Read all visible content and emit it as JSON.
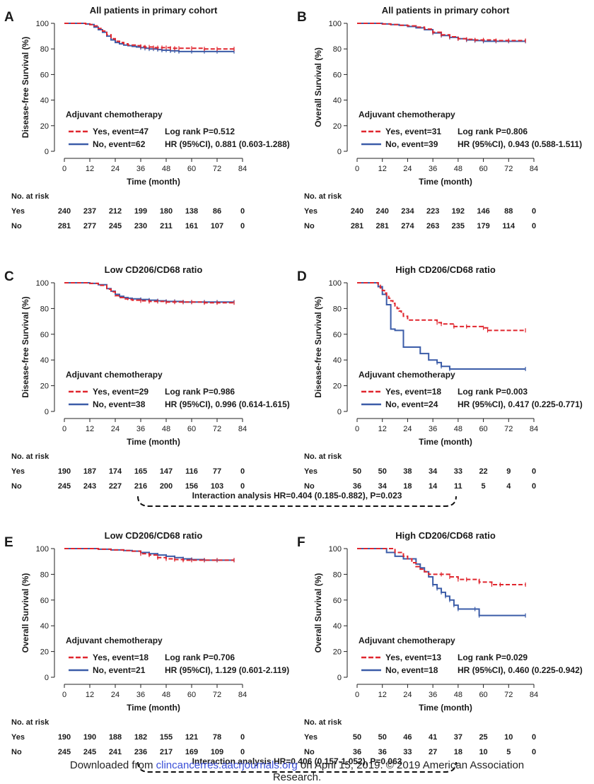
{
  "panels": [
    {
      "letter": "A",
      "title": "All patients in primary cohort",
      "ylabel": "Disease-free Survival (%)",
      "legend_header": "Adjuvant chemotherapy",
      "yes_label": "Yes, event=47",
      "no_label": "No, event=62",
      "stat1": "Log rank P=0.512",
      "stat2": "HR (95%CI), 0.881 (0.603-1.288)",
      "risk_header": "No. at risk",
      "risk_yes_label": "Yes",
      "risk_no_label": "No",
      "risk_yes": [
        "240",
        "237",
        "212",
        "199",
        "180",
        "138",
        "86",
        "0"
      ],
      "risk_no": [
        "281",
        "277",
        "245",
        "230",
        "211",
        "161",
        "107",
        "0"
      ]
    },
    {
      "letter": "B",
      "title": "All patients in primary cohort",
      "ylabel": "Overall Survival (%)",
      "legend_header": "Adjuvant chemotherapy",
      "yes_label": "Yes, event=31",
      "no_label": "No, event=39",
      "stat1": "Log rank P=0.806",
      "stat2": "HR (95%CI), 0.943 (0.588-1.511)",
      "risk_header": "No. at risk",
      "risk_yes_label": "Yes",
      "risk_no_label": "No",
      "risk_yes": [
        "240",
        "240",
        "234",
        "223",
        "192",
        "146",
        "88",
        "0"
      ],
      "risk_no": [
        "281",
        "281",
        "274",
        "263",
        "235",
        "179",
        "114",
        "0"
      ]
    },
    {
      "letter": "C",
      "title": "Low CD206/CD68 ratio",
      "ylabel": "Disease-free Survival (%)",
      "legend_header": "Adjuvant chemotherapy",
      "yes_label": "Yes, event=29",
      "no_label": "No, event=38",
      "stat1": "Log rank P=0.986",
      "stat2": "HR (95%CI), 0.996 (0.614-1.615)",
      "risk_header": "No. at risk",
      "risk_yes_label": "Yes",
      "risk_no_label": "No",
      "risk_yes": [
        "190",
        "187",
        "174",
        "165",
        "147",
        "116",
        "77",
        "0"
      ],
      "risk_no": [
        "245",
        "243",
        "227",
        "216",
        "200",
        "156",
        "103",
        "0"
      ]
    },
    {
      "letter": "D",
      "title": "High CD206/CD68 ratio",
      "ylabel": "Disease-free Survival (%)",
      "legend_header": "Adjuvant chemotherapy",
      "yes_label": "Yes, event=18",
      "no_label": "No, event=24",
      "stat1": "Log rank P=0.003",
      "stat2": "HR (95%CI), 0.417 (0.225-0.771)",
      "risk_header": "No. at risk",
      "risk_yes_label": "Yes",
      "risk_no_label": "No",
      "risk_yes": [
        "50",
        "50",
        "38",
        "34",
        "33",
        "22",
        "9",
        "0"
      ],
      "risk_no": [
        "36",
        "34",
        "18",
        "14",
        "11",
        "5",
        "4",
        "0"
      ]
    },
    {
      "letter": "E",
      "title": "Low CD206/CD68 ratio",
      "ylabel": "Overall Survival (%)",
      "legend_header": "Adjuvant chemotherapy",
      "yes_label": "Yes, event=18",
      "no_label": "No, event=21",
      "stat1": "Log rank P=0.706",
      "stat2": "HR (95%CI), 1.129 (0.601-2.119)",
      "risk_header": "No. at risk",
      "risk_yes_label": "Yes",
      "risk_no_label": "No",
      "risk_yes": [
        "190",
        "190",
        "188",
        "182",
        "155",
        "121",
        "78",
        "0"
      ],
      "risk_no": [
        "245",
        "245",
        "241",
        "236",
        "217",
        "169",
        "109",
        "0"
      ]
    },
    {
      "letter": "F",
      "title": "High CD206/CD68 ratio",
      "ylabel": "Overall Survival (%)",
      "legend_header": "Adjuvant chemotherapy",
      "yes_label": "Yes, event=13",
      "no_label": "No, event=18",
      "stat1": "Log rank P=0.029",
      "stat2": "HR (95%CI), 0.460 (0.225-0.942)",
      "risk_header": "No. at risk",
      "risk_yes_label": "Yes",
      "risk_no_label": "No",
      "risk_yes": [
        "50",
        "50",
        "46",
        "41",
        "37",
        "25",
        "10",
        "0"
      ],
      "risk_no": [
        "36",
        "36",
        "33",
        "27",
        "18",
        "10",
        "5",
        "0"
      ]
    }
  ],
  "xlabel": "Time (month)",
  "interaction_1": "Interaction analysis HR=0.404 (0.185-0.882), P=0.023",
  "interaction_2": "Interaction analysis HR=0.406 (0.157-1.052), P=0.063",
  "footer": {
    "prefix": "Downloaded from ",
    "link": "clincancerres.aacrjournals.org",
    "suffix": " on April 15, 2019. © 2019 American Association",
    "line2": "Research."
  },
  "colors": {
    "yes": "#e0262e",
    "no": "#3b5ca8"
  },
  "chart_data": [
    {
      "panel": "A",
      "type": "line",
      "title": "All patients in primary cohort",
      "xlabel": "Time (month)",
      "ylabel": "Disease-free Survival (%)",
      "xlim": [
        0,
        84
      ],
      "ylim": [
        0,
        100
      ],
      "xticks": [
        0,
        12,
        24,
        36,
        48,
        60,
        72,
        84
      ],
      "yticks": [
        0,
        20,
        40,
        60,
        80,
        100
      ],
      "series": [
        {
          "name": "Yes, event=47",
          "x": [
            0,
            8,
            10,
            12,
            14,
            16,
            18,
            20,
            22,
            24,
            26,
            28,
            30,
            32,
            34,
            36,
            38,
            40,
            42,
            44,
            46,
            48,
            50,
            52,
            54,
            60,
            66,
            72,
            80
          ],
          "y": [
            100,
            100,
            99.5,
            99,
            98,
            96,
            94,
            91,
            88,
            86,
            85,
            84,
            83,
            83,
            82.5,
            82,
            81.5,
            81.5,
            81,
            81,
            81,
            81,
            80.5,
            80.5,
            80.5,
            80.5,
            80,
            80,
            80
          ]
        },
        {
          "name": "No, event=62",
          "x": [
            0,
            8,
            10,
            12,
            14,
            16,
            18,
            20,
            22,
            24,
            26,
            28,
            30,
            32,
            34,
            36,
            38,
            40,
            42,
            44,
            46,
            48,
            50,
            52,
            54,
            60,
            66,
            72,
            80
          ],
          "y": [
            100,
            100,
            99.5,
            99,
            97,
            95,
            93,
            90,
            87,
            85,
            84,
            83,
            82.5,
            82,
            81.5,
            81,
            80.5,
            80,
            80,
            79.5,
            79,
            79,
            78.5,
            78.5,
            78,
            78,
            78,
            78,
            78
          ]
        }
      ]
    },
    {
      "panel": "B",
      "type": "line",
      "title": "All patients in primary cohort",
      "xlabel": "Time (month)",
      "ylabel": "Overall Survival (%)",
      "xlim": [
        0,
        84
      ],
      "ylim": [
        0,
        100
      ],
      "xticks": [
        0,
        12,
        24,
        36,
        48,
        60,
        72,
        84
      ],
      "yticks": [
        0,
        20,
        40,
        60,
        80,
        100
      ],
      "series": [
        {
          "name": "Yes, event=31",
          "x": [
            0,
            8,
            12,
            16,
            20,
            24,
            28,
            32,
            36,
            40,
            44,
            48,
            52,
            56,
            60,
            66,
            72,
            80
          ],
          "y": [
            100,
            100,
            99.5,
            99,
            98.5,
            98,
            97,
            95.5,
            93,
            91,
            89.5,
            88,
            87.5,
            87,
            87,
            86.5,
            86.5,
            86.5
          ]
        },
        {
          "name": "No, event=39",
          "x": [
            0,
            8,
            12,
            16,
            20,
            24,
            28,
            32,
            36,
            40,
            44,
            48,
            52,
            56,
            60,
            66,
            72,
            80
          ],
          "y": [
            100,
            100,
            99.5,
            99,
            98.5,
            97.5,
            96.5,
            95,
            92.5,
            90.5,
            89,
            88,
            87,
            86.5,
            86,
            86,
            86,
            86
          ]
        }
      ]
    },
    {
      "panel": "C",
      "type": "line",
      "title": "Low CD206/CD68 ratio",
      "xlabel": "Time (month)",
      "ylabel": "Disease-free Survival (%)",
      "xlim": [
        0,
        84
      ],
      "ylim": [
        0,
        100
      ],
      "xticks": [
        0,
        12,
        24,
        36,
        48,
        60,
        72,
        84
      ],
      "yticks": [
        0,
        20,
        40,
        60,
        80,
        100
      ],
      "series": [
        {
          "name": "Yes, event=29",
          "x": [
            0,
            8,
            12,
            16,
            20,
            22,
            24,
            26,
            28,
            30,
            32,
            36,
            40,
            44,
            48,
            52,
            56,
            60,
            66,
            72,
            80
          ],
          "y": [
            100,
            100,
            99.5,
            98,
            95,
            93,
            90,
            88.5,
            87.5,
            87,
            86.5,
            86,
            85.5,
            85.5,
            85,
            85,
            85,
            85,
            84.5,
            84.5,
            84.5
          ]
        },
        {
          "name": "No, event=38",
          "x": [
            0,
            8,
            12,
            16,
            20,
            22,
            24,
            26,
            28,
            30,
            32,
            36,
            40,
            44,
            48,
            52,
            56,
            60,
            66,
            72,
            80
          ],
          "y": [
            100,
            100,
            99.5,
            98.5,
            95.5,
            93.5,
            91,
            89.5,
            88.5,
            88,
            87.5,
            87,
            86.5,
            86,
            85.5,
            85.5,
            85,
            85,
            85,
            85,
            85
          ]
        }
      ]
    },
    {
      "panel": "D",
      "type": "line",
      "title": "High CD206/CD68 ratio",
      "xlabel": "Time (month)",
      "ylabel": "Disease-free Survival (%)",
      "xlim": [
        0,
        84
      ],
      "ylim": [
        0,
        100
      ],
      "xticks": [
        0,
        12,
        24,
        36,
        48,
        60,
        72,
        84
      ],
      "yticks": [
        0,
        20,
        40,
        60,
        80,
        100
      ],
      "series": [
        {
          "name": "Yes, event=18",
          "x": [
            0,
            9,
            10,
            11,
            12,
            13,
            14,
            15,
            16,
            17,
            18,
            19,
            20,
            21,
            22,
            24,
            34,
            38,
            40,
            46,
            52,
            60,
            62,
            80
          ],
          "y": [
            100,
            100,
            98,
            96,
            94,
            92,
            90,
            88,
            86,
            84,
            82,
            80,
            78,
            76,
            74,
            71,
            71,
            69,
            68,
            66,
            66,
            65,
            63,
            63
          ]
        },
        {
          "name": "No, event=24",
          "x": [
            0,
            8,
            10,
            12,
            14,
            16,
            18,
            22,
            28,
            30,
            34,
            38,
            40,
            44,
            80
          ],
          "y": [
            100,
            100,
            97,
            91,
            83,
            64,
            63,
            50,
            50,
            45,
            40,
            38,
            35,
            33,
            33
          ]
        }
      ]
    },
    {
      "panel": "E",
      "type": "line",
      "title": "Low CD206/CD68 ratio",
      "xlabel": "Time (month)",
      "ylabel": "Overall Survival (%)",
      "xlim": [
        0,
        84
      ],
      "ylim": [
        0,
        100
      ],
      "xticks": [
        0,
        12,
        24,
        36,
        48,
        60,
        72,
        84
      ],
      "yticks": [
        0,
        20,
        40,
        60,
        80,
        100
      ],
      "series": [
        {
          "name": "Yes, event=18",
          "x": [
            0,
            10,
            16,
            22,
            28,
            32,
            36,
            40,
            44,
            48,
            52,
            56,
            60,
            66,
            72,
            80
          ],
          "y": [
            100,
            100,
            99.5,
            99,
            98.5,
            98,
            96,
            95,
            93,
            92,
            91.5,
            91,
            91,
            91,
            91,
            91
          ]
        },
        {
          "name": "No, event=21",
          "x": [
            0,
            10,
            16,
            22,
            28,
            32,
            36,
            40,
            44,
            48,
            52,
            56,
            60,
            66,
            72,
            80
          ],
          "y": [
            100,
            100,
            99.5,
            99,
            98.5,
            98,
            97,
            96,
            95,
            94,
            93,
            92,
            91.5,
            91,
            91,
            91
          ]
        }
      ]
    },
    {
      "panel": "F",
      "type": "line",
      "title": "High CD206/CD68 ratio",
      "xlabel": "Time (month)",
      "ylabel": "Overall Survival (%)",
      "xlim": [
        0,
        84
      ],
      "ylim": [
        0,
        100
      ],
      "xticks": [
        0,
        12,
        24,
        36,
        48,
        60,
        72,
        84
      ],
      "yticks": [
        0,
        20,
        40,
        60,
        80,
        100
      ],
      "series": [
        {
          "name": "Yes, event=13",
          "x": [
            0,
            14,
            18,
            22,
            24,
            26,
            28,
            30,
            32,
            34,
            40,
            44,
            48,
            52,
            58,
            64,
            68,
            80
          ],
          "y": [
            100,
            100,
            97,
            94,
            92,
            89,
            86,
            84,
            82,
            80,
            80,
            78,
            76,
            76,
            74,
            72,
            72,
            72
          ]
        },
        {
          "name": "No, event=18",
          "x": [
            0,
            12,
            14,
            18,
            22,
            24,
            28,
            30,
            32,
            34,
            36,
            38,
            40,
            42,
            44,
            46,
            48,
            56,
            58,
            80
          ],
          "y": [
            100,
            100,
            97,
            94,
            92,
            92,
            88,
            85,
            82,
            78,
            72,
            69,
            66,
            63,
            60,
            56,
            53,
            53,
            48,
            48
          ]
        }
      ]
    }
  ]
}
